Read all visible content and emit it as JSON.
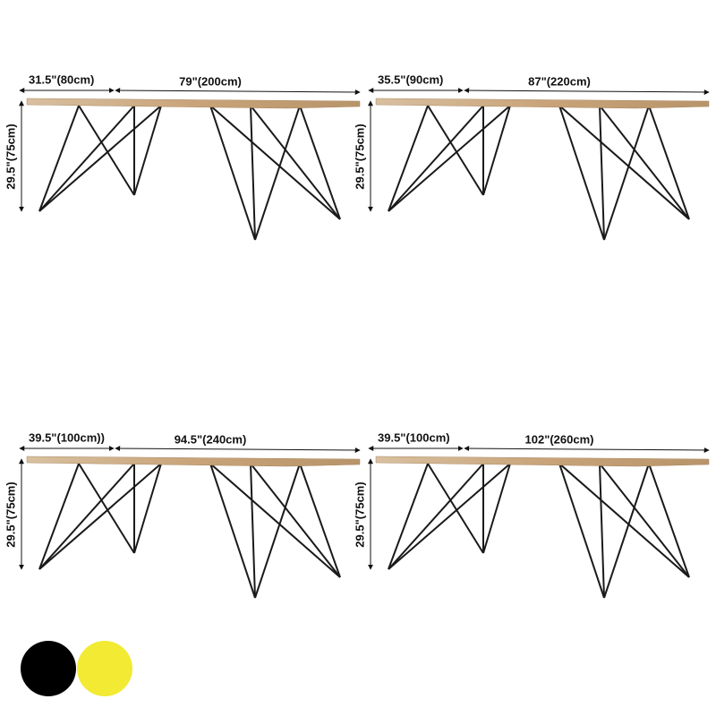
{
  "tables": [
    {
      "depth": "31.5\"(80cm)",
      "length": "79\"(200cm)",
      "height": "29.5\"(75cm)"
    },
    {
      "depth": "35.5\"(90cm)",
      "length": "87\"(220cm)",
      "height": "29.5\"(75cm)"
    },
    {
      "depth": "39.5\"(100cm))",
      "length": "94.5\"(240cm)",
      "height": "29.5\"(75cm)"
    },
    {
      "depth": "39.5\"(100cm)",
      "length": "102\"(260cm)",
      "height": "29.5\"(75cm)"
    }
  ]
}
